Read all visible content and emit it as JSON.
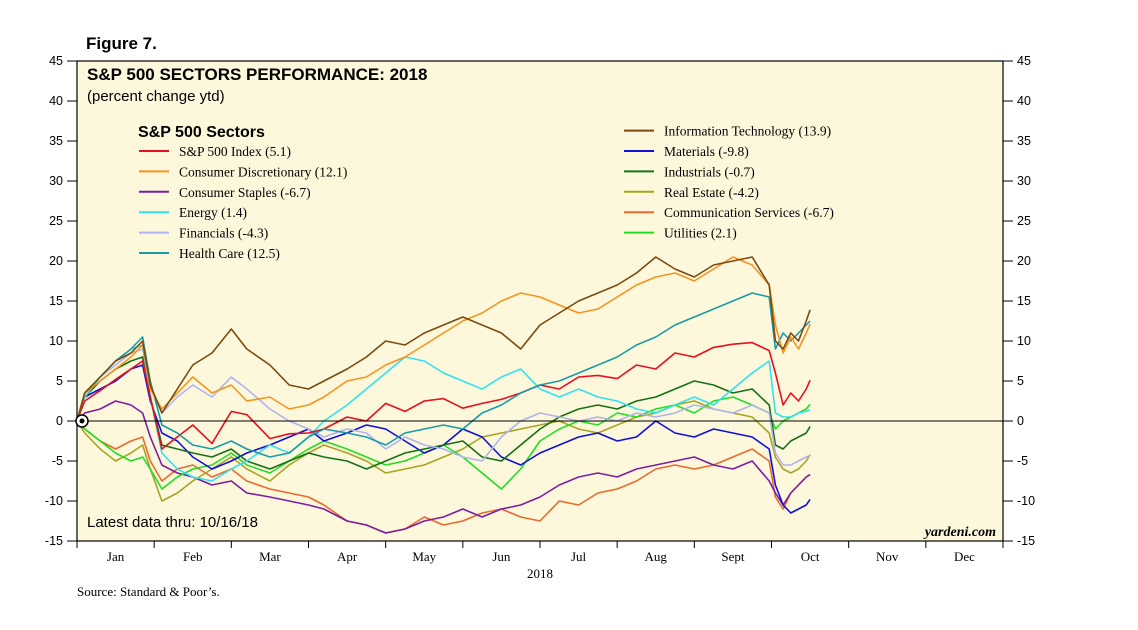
{
  "figure_label": "Figure 7.",
  "source": "Source: Standard & Poor’s.",
  "chart_data": {
    "type": "line",
    "title": "S&P 500 SECTORS PERFORMANCE: 2018",
    "subtitle": "(percent change ytd)",
    "legend_title": "S&P 500 Sectors",
    "xlabel": "2018",
    "ylabel": "",
    "ylim": [
      -15,
      45
    ],
    "yticks": [
      -15,
      -10,
      -5,
      0,
      5,
      10,
      15,
      20,
      25,
      30,
      35,
      40,
      45
    ],
    "months": [
      "Jan",
      "Feb",
      "Mar",
      "Apr",
      "May",
      "Jun",
      "Jul",
      "Aug",
      "Sept",
      "Oct",
      "Nov",
      "Dec"
    ],
    "note": "Latest data thru: 10/16/18",
    "brand": "yardeni.com",
    "x_unit": "month index (0 = Jan 1, 12 = Dec 31)",
    "series": [
      {
        "name": "S&P 500 Index (5.1)",
        "color": "#e8101c",
        "x": [
          0,
          0.1,
          0.3,
          0.5,
          0.7,
          0.85,
          0.95,
          1.1,
          1.3,
          1.5,
          1.75,
          2.0,
          2.2,
          2.5,
          2.75,
          3.0,
          3.2,
          3.5,
          3.75,
          4.0,
          4.25,
          4.5,
          4.75,
          5.0,
          5.25,
          5.5,
          5.75,
          6.0,
          6.25,
          6.5,
          6.75,
          7.0,
          7.25,
          7.5,
          7.75,
          8.0,
          8.25,
          8.5,
          8.75,
          8.97,
          9.05,
          9.15,
          9.25,
          9.35,
          9.45,
          9.5
        ],
        "y": [
          0,
          2.5,
          3.8,
          5.2,
          6.5,
          7.5,
          3.0,
          -3.5,
          -2.0,
          -0.5,
          -2.8,
          1.2,
          0.8,
          -2.2,
          -1.6,
          -1.5,
          -1.0,
          0.5,
          0.0,
          2.2,
          1.2,
          2.5,
          2.8,
          1.6,
          2.2,
          2.7,
          3.5,
          4.5,
          4.0,
          5.5,
          5.7,
          5.3,
          7.0,
          6.5,
          8.5,
          8.0,
          9.2,
          9.6,
          9.8,
          8.8,
          6.0,
          2.0,
          3.5,
          2.5,
          4.0,
          5.1
        ]
      },
      {
        "name": "Consumer Discretionary (12.1)",
        "color": "#f7941d",
        "x": [
          0,
          0.1,
          0.3,
          0.5,
          0.7,
          0.85,
          0.95,
          1.1,
          1.3,
          1.5,
          1.75,
          2.0,
          2.2,
          2.5,
          2.75,
          3.0,
          3.2,
          3.5,
          3.75,
          4.0,
          4.25,
          4.5,
          4.75,
          5.0,
          5.25,
          5.5,
          5.75,
          6.0,
          6.25,
          6.5,
          6.75,
          7.0,
          7.25,
          7.5,
          7.75,
          8.0,
          8.25,
          8.5,
          8.75,
          8.97,
          9.05,
          9.15,
          9.25,
          9.35,
          9.45,
          9.5
        ],
        "y": [
          0,
          3.5,
          5.0,
          6.5,
          8.0,
          9.5,
          4.0,
          1.5,
          3.5,
          5.5,
          3.5,
          4.5,
          2.5,
          3.0,
          1.5,
          2.0,
          3.0,
          5.0,
          5.5,
          7.0,
          8.0,
          9.5,
          11.0,
          12.5,
          13.5,
          15.0,
          16.0,
          15.5,
          14.5,
          13.5,
          14.0,
          15.5,
          17.0,
          18.0,
          18.5,
          17.5,
          19.0,
          20.5,
          19.5,
          17.0,
          12.0,
          8.5,
          10.5,
          9.0,
          11.0,
          12.1
        ]
      },
      {
        "name": "Consumer Staples (-6.7)",
        "color": "#7b1fa2",
        "x": [
          0,
          0.1,
          0.3,
          0.5,
          0.7,
          0.85,
          0.95,
          1.1,
          1.3,
          1.5,
          1.75,
          2.0,
          2.2,
          2.5,
          2.75,
          3.0,
          3.2,
          3.5,
          3.75,
          4.0,
          4.25,
          4.5,
          4.75,
          5.0,
          5.25,
          5.5,
          5.75,
          6.0,
          6.25,
          6.5,
          6.75,
          7.0,
          7.25,
          7.5,
          7.75,
          8.0,
          8.25,
          8.5,
          8.75,
          8.97,
          9.05,
          9.15,
          9.25,
          9.35,
          9.45,
          9.5
        ],
        "y": [
          0,
          1.0,
          1.5,
          2.5,
          2.0,
          1.0,
          -2.0,
          -5.5,
          -6.5,
          -7.0,
          -8.0,
          -7.5,
          -9.0,
          -9.5,
          -10.0,
          -10.5,
          -11.0,
          -12.5,
          -13.0,
          -14.0,
          -13.5,
          -12.5,
          -12.0,
          -11.0,
          -12.0,
          -11.0,
          -10.5,
          -9.5,
          -8.0,
          -7.0,
          -6.5,
          -7.0,
          -6.0,
          -5.5,
          -5.0,
          -4.5,
          -5.5,
          -6.0,
          -5.0,
          -7.5,
          -9.0,
          -10.5,
          -9.0,
          -8.0,
          -7.0,
          -6.7
        ]
      },
      {
        "name": "Energy (1.4)",
        "color": "#33e0f0",
        "x": [
          0,
          0.1,
          0.3,
          0.5,
          0.7,
          0.85,
          0.95,
          1.1,
          1.3,
          1.5,
          1.75,
          2.0,
          2.2,
          2.5,
          2.75,
          3.0,
          3.2,
          3.5,
          3.75,
          4.0,
          4.25,
          4.5,
          4.75,
          5.0,
          5.25,
          5.5,
          5.75,
          6.0,
          6.25,
          6.5,
          6.75,
          7.0,
          7.25,
          7.5,
          7.75,
          8.0,
          8.25,
          8.5,
          8.75,
          8.97,
          9.05,
          9.15,
          9.25,
          9.35,
          9.45,
          9.5
        ],
        "y": [
          0,
          3.0,
          5.5,
          7.5,
          9.0,
          9.5,
          3.0,
          -4.0,
          -6.0,
          -7.0,
          -7.5,
          -6.0,
          -5.0,
          -3.0,
          -4.0,
          -2.0,
          0.0,
          2.0,
          4.0,
          6.0,
          8.0,
          7.5,
          6.0,
          5.0,
          4.0,
          5.5,
          6.5,
          4.0,
          3.0,
          4.0,
          3.0,
          2.5,
          1.5,
          1.0,
          2.0,
          3.0,
          2.0,
          4.0,
          6.0,
          7.5,
          1.0,
          0.5,
          0.5,
          1.0,
          1.2,
          1.4
        ]
      },
      {
        "name": "Financials (-4.3)",
        "color": "#b0b4ec",
        "x": [
          0,
          0.1,
          0.3,
          0.5,
          0.7,
          0.85,
          0.95,
          1.1,
          1.3,
          1.5,
          1.75,
          2.0,
          2.2,
          2.5,
          2.75,
          3.0,
          3.2,
          3.5,
          3.75,
          4.0,
          4.25,
          4.5,
          4.75,
          5.0,
          5.25,
          5.5,
          5.75,
          6.0,
          6.25,
          6.5,
          6.75,
          7.0,
          7.25,
          7.5,
          7.75,
          8.0,
          8.25,
          8.5,
          8.75,
          8.97,
          9.05,
          9.15,
          9.25,
          9.35,
          9.45,
          9.5
        ],
        "y": [
          0,
          3.5,
          5.5,
          7.0,
          8.5,
          9.0,
          4.5,
          1.0,
          3.0,
          4.5,
          3.0,
          5.5,
          4.0,
          1.5,
          0.0,
          -1.0,
          -2.0,
          -1.0,
          -1.5,
          -3.5,
          -2.0,
          -3.0,
          -3.5,
          -4.5,
          -5.0,
          -2.0,
          0.0,
          1.0,
          0.5,
          0.0,
          0.5,
          0.0,
          1.0,
          0.5,
          1.0,
          2.0,
          1.5,
          1.0,
          2.0,
          1.0,
          -4.0,
          -5.5,
          -5.5,
          -5.0,
          -4.5,
          -4.3
        ]
      },
      {
        "name": "Health Care (12.5)",
        "color": "#1a9ba6",
        "x": [
          0,
          0.1,
          0.3,
          0.5,
          0.7,
          0.85,
          0.95,
          1.1,
          1.3,
          1.5,
          1.75,
          2.0,
          2.2,
          2.5,
          2.75,
          3.0,
          3.2,
          3.5,
          3.75,
          4.0,
          4.25,
          4.5,
          4.75,
          5.0,
          5.25,
          5.5,
          5.75,
          6.0,
          6.25,
          6.5,
          6.75,
          7.0,
          7.25,
          7.5,
          7.75,
          8.0,
          8.25,
          8.5,
          8.75,
          8.97,
          9.05,
          9.15,
          9.25,
          9.35,
          9.45,
          9.5
        ],
        "y": [
          0,
          3.5,
          5.5,
          7.5,
          9.0,
          10.5,
          5.0,
          -0.5,
          -1.5,
          -3.0,
          -3.5,
          -2.5,
          -3.5,
          -4.5,
          -4.0,
          -2.0,
          -1.0,
          -1.5,
          -2.0,
          -3.0,
          -1.5,
          -1.0,
          -0.5,
          -1.0,
          1.0,
          2.0,
          3.5,
          4.5,
          5.0,
          6.0,
          7.0,
          8.0,
          9.5,
          10.5,
          12.0,
          13.0,
          14.0,
          15.0,
          16.0,
          15.5,
          9.0,
          11.0,
          10.0,
          11.0,
          12.0,
          12.5
        ]
      },
      {
        "name": "Information Technology (13.9)",
        "color": "#7a4a0f",
        "x": [
          0,
          0.1,
          0.3,
          0.5,
          0.7,
          0.85,
          0.95,
          1.1,
          1.3,
          1.5,
          1.75,
          2.0,
          2.2,
          2.5,
          2.75,
          3.0,
          3.2,
          3.5,
          3.75,
          4.0,
          4.25,
          4.5,
          4.75,
          5.0,
          5.25,
          5.5,
          5.75,
          6.0,
          6.25,
          6.5,
          6.75,
          7.0,
          7.25,
          7.5,
          7.75,
          8.0,
          8.25,
          8.5,
          8.75,
          8.97,
          9.05,
          9.15,
          9.25,
          9.35,
          9.45,
          9.5
        ],
        "y": [
          0,
          3.5,
          5.5,
          7.5,
          8.5,
          10.0,
          4.5,
          1.0,
          4.0,
          7.0,
          8.5,
          11.5,
          9.0,
          7.0,
          4.5,
          4.0,
          5.0,
          6.5,
          8.0,
          10.0,
          9.5,
          11.0,
          12.0,
          13.0,
          12.0,
          11.0,
          9.0,
          12.0,
          13.5,
          15.0,
          16.0,
          17.0,
          18.5,
          20.5,
          19.0,
          18.0,
          19.5,
          20.0,
          20.5,
          17.0,
          10.0,
          9.0,
          11.0,
          10.0,
          12.5,
          13.9
        ]
      },
      {
        "name": "Materials (-9.8)",
        "color": "#1010d8",
        "x": [
          0,
          0.1,
          0.3,
          0.5,
          0.7,
          0.85,
          0.95,
          1.1,
          1.3,
          1.5,
          1.75,
          2.0,
          2.2,
          2.5,
          2.75,
          3.0,
          3.2,
          3.5,
          3.75,
          4.0,
          4.25,
          4.5,
          4.75,
          5.0,
          5.25,
          5.5,
          5.75,
          6.0,
          6.25,
          6.5,
          6.75,
          7.0,
          7.25,
          7.5,
          7.75,
          8.0,
          8.25,
          8.5,
          8.75,
          8.97,
          9.05,
          9.15,
          9.25,
          9.35,
          9.45,
          9.5
        ],
        "y": [
          0,
          3.0,
          4.0,
          5.0,
          6.5,
          7.0,
          2.5,
          -1.5,
          -2.5,
          -4.5,
          -6.0,
          -5.0,
          -4.0,
          -3.0,
          -2.0,
          -1.0,
          -2.5,
          -1.5,
          -0.5,
          -1.0,
          -2.5,
          -4.0,
          -3.0,
          -1.0,
          -2.0,
          -4.5,
          -5.5,
          -4.0,
          -3.0,
          -2.0,
          -1.5,
          -2.5,
          -2.0,
          0.0,
          -1.5,
          -2.0,
          -1.0,
          -1.5,
          -2.0,
          -3.5,
          -8.0,
          -10.5,
          -11.5,
          -11.0,
          -10.5,
          -9.8
        ]
      },
      {
        "name": "Industrials (-0.7)",
        "color": "#167016",
        "x": [
          0,
          0.1,
          0.3,
          0.5,
          0.7,
          0.85,
          0.95,
          1.1,
          1.3,
          1.5,
          1.75,
          2.0,
          2.2,
          2.5,
          2.75,
          3.0,
          3.2,
          3.5,
          3.75,
          4.0,
          4.25,
          4.5,
          4.75,
          5.0,
          5.25,
          5.5,
          5.75,
          6.0,
          6.25,
          6.5,
          6.75,
          7.0,
          7.25,
          7.5,
          7.75,
          8.0,
          8.25,
          8.5,
          8.75,
          8.97,
          9.05,
          9.15,
          9.25,
          9.35,
          9.45,
          9.5
        ],
        "y": [
          0,
          3.0,
          5.0,
          6.5,
          7.5,
          8.0,
          3.0,
          -3.0,
          -3.5,
          -4.0,
          -4.5,
          -3.5,
          -5.0,
          -6.0,
          -5.0,
          -4.0,
          -4.5,
          -5.0,
          -6.0,
          -5.0,
          -4.0,
          -3.5,
          -3.0,
          -2.5,
          -4.5,
          -5.0,
          -3.0,
          -1.0,
          0.5,
          1.5,
          2.0,
          1.5,
          2.5,
          3.0,
          4.0,
          5.0,
          4.5,
          3.5,
          4.0,
          2.0,
          -3.0,
          -3.5,
          -2.5,
          -2.0,
          -1.5,
          -0.7
        ]
      },
      {
        "name": "Real Estate (-4.2)",
        "color": "#a8a320",
        "x": [
          0,
          0.1,
          0.3,
          0.5,
          0.7,
          0.85,
          0.95,
          1.1,
          1.3,
          1.5,
          1.75,
          2.0,
          2.2,
          2.5,
          2.75,
          3.0,
          3.2,
          3.5,
          3.75,
          4.0,
          4.25,
          4.5,
          4.75,
          5.0,
          5.25,
          5.5,
          5.75,
          6.0,
          6.25,
          6.5,
          6.75,
          7.0,
          7.25,
          7.5,
          7.75,
          8.0,
          8.25,
          8.5,
          8.75,
          8.97,
          9.05,
          9.15,
          9.25,
          9.35,
          9.45,
          9.5
        ],
        "y": [
          0,
          -1.5,
          -3.5,
          -5.0,
          -4.0,
          -3.0,
          -6.0,
          -10.0,
          -9.0,
          -7.5,
          -6.0,
          -4.5,
          -6.0,
          -7.5,
          -5.5,
          -4.0,
          -3.0,
          -4.0,
          -5.0,
          -6.5,
          -6.0,
          -5.5,
          -4.5,
          -3.5,
          -2.0,
          -1.5,
          -1.0,
          -0.5,
          0.0,
          -1.0,
          -1.5,
          -0.5,
          0.5,
          1.0,
          2.0,
          2.5,
          1.5,
          1.0,
          0.5,
          -1.5,
          -4.5,
          -6.0,
          -6.5,
          -6.0,
          -5.0,
          -4.2
        ]
      },
      {
        "name": "Communication Services (-6.7)",
        "color": "#ea6a2c",
        "x": [
          0,
          0.1,
          0.3,
          0.5,
          0.7,
          0.85,
          0.95,
          1.1,
          1.3,
          1.5,
          1.75,
          2.0,
          2.2,
          2.5,
          2.75,
          3.0,
          3.2,
          3.5,
          3.75,
          4.0,
          4.25,
          4.5,
          4.75,
          5.0,
          5.25,
          5.5,
          5.75,
          6.0,
          6.25,
          6.5,
          6.75,
          7.0,
          7.25,
          7.5,
          7.75,
          8.0,
          8.25,
          8.5,
          8.75,
          8.97,
          9.05,
          9.15,
          9.25,
          9.35,
          9.45,
          9.5
        ],
        "y": [
          0,
          -1.0,
          -2.5,
          -3.5,
          -2.5,
          -2.0,
          -5.0,
          -7.5,
          -6.0,
          -5.5,
          -7.0,
          -6.0,
          -7.5,
          -8.5,
          -9.0,
          -9.5,
          -10.5,
          -12.5,
          -13.0,
          -14.0,
          -13.5,
          -12.0,
          -13.0,
          -12.5,
          -11.5,
          -11.0,
          -12.0,
          -12.5,
          -10.0,
          -10.5,
          -9.0,
          -8.5,
          -7.5,
          -6.0,
          -5.5,
          -6.0,
          -5.5,
          -4.5,
          -3.5,
          -5.0,
          -9.5,
          -11.0,
          -9.0,
          -8.0,
          -7.0,
          -6.7
        ]
      },
      {
        "name": "Utilities (2.1)",
        "color": "#22dd22",
        "x": [
          0,
          0.1,
          0.3,
          0.5,
          0.7,
          0.85,
          0.95,
          1.1,
          1.3,
          1.5,
          1.75,
          2.0,
          2.2,
          2.5,
          2.75,
          3.0,
          3.2,
          3.5,
          3.75,
          4.0,
          4.25,
          4.5,
          4.75,
          5.0,
          5.25,
          5.5,
          5.75,
          6.0,
          6.25,
          6.5,
          6.75,
          7.0,
          7.25,
          7.5,
          7.75,
          8.0,
          8.25,
          8.5,
          8.75,
          8.97,
          9.05,
          9.15,
          9.25,
          9.35,
          9.45,
          9.5
        ],
        "y": [
          0,
          -1.0,
          -2.5,
          -4.0,
          -5.0,
          -4.5,
          -6.0,
          -8.5,
          -7.0,
          -6.0,
          -5.5,
          -4.0,
          -5.5,
          -6.5,
          -5.0,
          -3.5,
          -2.5,
          -3.5,
          -4.5,
          -5.5,
          -5.0,
          -4.0,
          -3.0,
          -4.5,
          -6.5,
          -8.5,
          -6.0,
          -2.5,
          -1.0,
          0.0,
          -0.5,
          1.0,
          0.5,
          1.5,
          2.0,
          1.0,
          2.5,
          3.0,
          2.0,
          1.0,
          -1.0,
          0.0,
          0.5,
          1.0,
          1.5,
          2.1
        ]
      }
    ]
  }
}
